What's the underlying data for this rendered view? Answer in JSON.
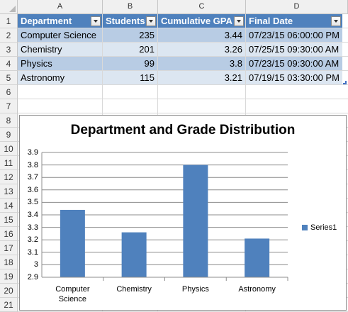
{
  "sheet": {
    "columns": [
      "A",
      "B",
      "C",
      "D"
    ],
    "rows": [
      "1",
      "2",
      "3",
      "4",
      "5",
      "6",
      "7",
      "8",
      "9",
      "10",
      "11",
      "12",
      "13",
      "14",
      "15",
      "16",
      "17",
      "18",
      "19",
      "20",
      "21"
    ],
    "table": {
      "headers": [
        "Department",
        "Students",
        "Cumulative GPA",
        "Final Date"
      ],
      "data": [
        [
          "Computer Science",
          "235",
          "3.44",
          "07/23/15 06:00:00 PM"
        ],
        [
          "Chemistry",
          "201",
          "3.26",
          "07/25/15 09:30:00 AM"
        ],
        [
          "Physics",
          "99",
          "3.8",
          "07/23/15 09:30:00 AM"
        ],
        [
          "Astronomy",
          "115",
          "3.21",
          "07/19/15 03:30:00 PM"
        ]
      ]
    }
  },
  "colors": {
    "header": "#4f81bd",
    "band_dark": "#b8cce4",
    "band_light": "#dce6f1",
    "bar": "#4f81bd"
  },
  "chart_data": {
    "type": "bar",
    "title": "Department and Grade Distribution",
    "categories": [
      "Computer Science",
      "Chemistry",
      "Physics",
      "Astronomy"
    ],
    "category_labels": [
      [
        "Computer",
        "Science"
      ],
      [
        "Chemistry"
      ],
      [
        "Physics"
      ],
      [
        "Astronomy"
      ]
    ],
    "series": [
      {
        "name": "Series1",
        "values": [
          3.44,
          3.26,
          3.8,
          3.21
        ]
      }
    ],
    "yticks": [
      "3.9",
      "3.8",
      "3.7",
      "3.6",
      "3.5",
      "3.4",
      "3.3",
      "3.2",
      "3.1",
      "3",
      "2.9"
    ],
    "ylim": [
      2.9,
      3.9
    ],
    "grid": true,
    "legend": "right"
  }
}
